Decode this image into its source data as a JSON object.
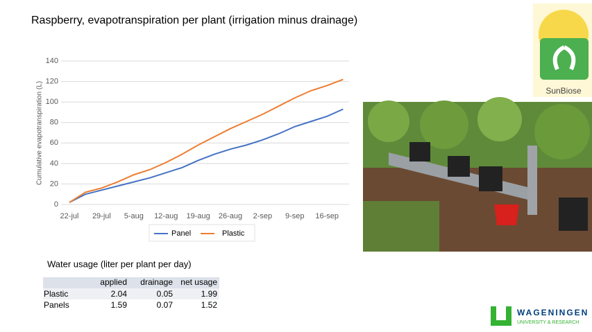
{
  "title": "Raspberry, evapotranspiration per plant (irrigation minus drainage)",
  "chart_data": {
    "type": "line",
    "y_label": "Cumulative evapotranspiration (L)",
    "categories": [
      "22-jul",
      null,
      "29-jul",
      null,
      "5-aug",
      null,
      "12-aug",
      null,
      "19-aug",
      null,
      "26-aug",
      null,
      "2-sep",
      null,
      "9-sep",
      null,
      "16-sep",
      null
    ],
    "series": [
      {
        "name": "Panel",
        "color": "#4472c4",
        "values": [
          2,
          10,
          14,
          18,
          22,
          26,
          31,
          36,
          43,
          49,
          54,
          58,
          63,
          69,
          76,
          81,
          86,
          93
        ]
      },
      {
        "name": "Plastic",
        "color": "#ed7d31",
        "values": [
          2,
          12,
          16,
          22,
          29,
          34,
          41,
          49,
          58,
          66,
          74,
          81,
          88,
          96,
          104,
          111,
          116,
          122
        ]
      }
    ],
    "ylim": [
      0,
      140
    ],
    "yticks": [
      0,
      20,
      40,
      60,
      80,
      100,
      120,
      140
    ],
    "grid": true,
    "legend": "bottom"
  },
  "table": {
    "title": "Water usage (liter per plant per day)",
    "columns": [
      "applied",
      "drainage",
      "net usage"
    ],
    "rows": [
      {
        "label": "Plastic",
        "values": [
          2.04,
          0.05,
          1.99
        ]
      },
      {
        "label": "Panels",
        "values": [
          1.59,
          0.07,
          1.52
        ]
      }
    ]
  },
  "logo_sun": "SunBiose",
  "logo_wur": {
    "name": "WAGENINGEN",
    "sub": "UNIVERSITY & RESEARCH"
  }
}
